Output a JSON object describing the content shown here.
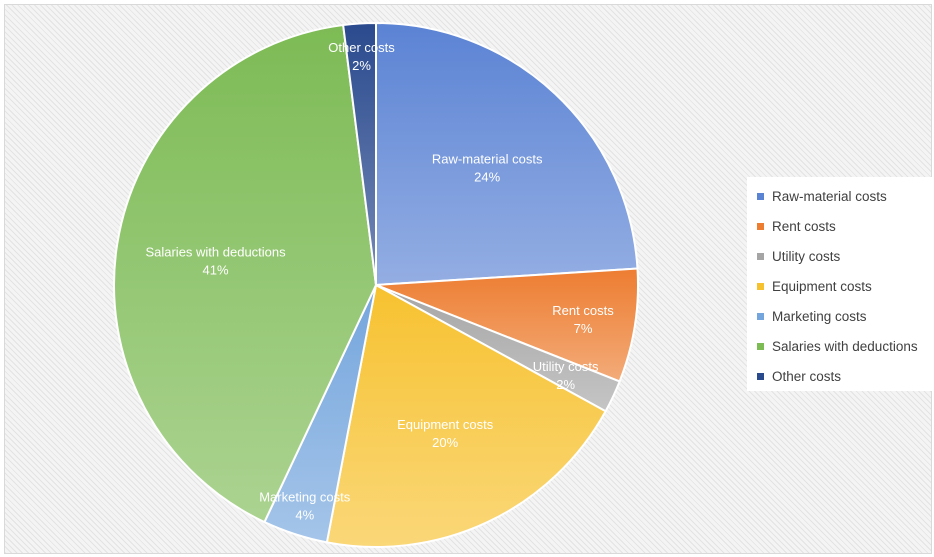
{
  "chart_data": {
    "type": "pie",
    "title": "",
    "legend_position": "right",
    "slices": [
      {
        "label": "Raw-material costs",
        "value": 24,
        "display": "24%",
        "color": "#5b83d4"
      },
      {
        "label": "Rent costs",
        "value": 7,
        "display": "7%",
        "color": "#ed7d31"
      },
      {
        "label": "Utility costs",
        "value": 2,
        "display": "2%",
        "color": "#a5a5a5"
      },
      {
        "label": "Equipment costs",
        "value": 20,
        "display": "20%",
        "color": "#f7c230"
      },
      {
        "label": "Marketing costs",
        "value": 4,
        "display": "4%",
        "color": "#74a5dd"
      },
      {
        "label": "Salaries with deductions",
        "value": 41,
        "display": "41%",
        "color": "#7dbb55"
      },
      {
        "label": "Other costs",
        "value": 2,
        "display": "2%",
        "color": "#2a4a8e"
      }
    ]
  }
}
